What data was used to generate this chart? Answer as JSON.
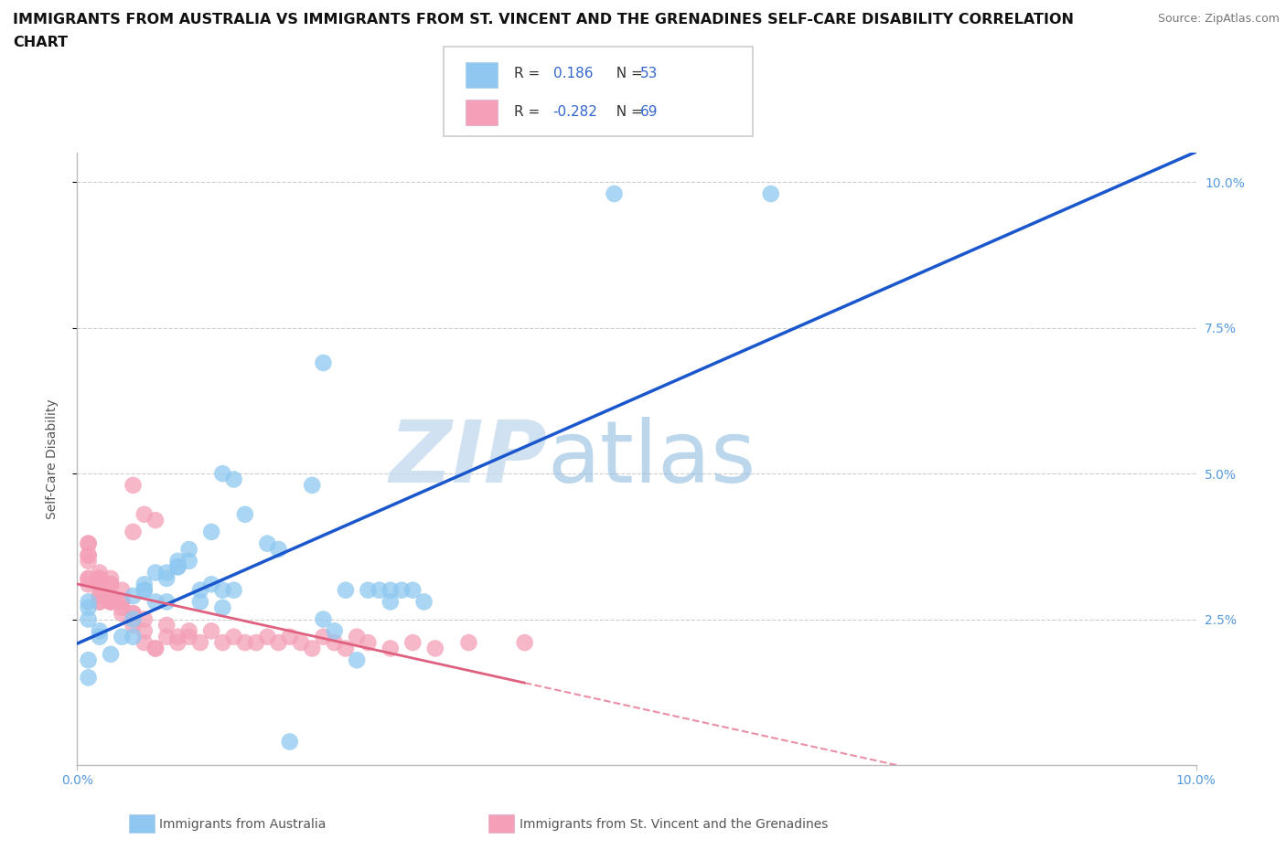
{
  "title_line1": "IMMIGRANTS FROM AUSTRALIA VS IMMIGRANTS FROM ST. VINCENT AND THE GRENADINES SELF-CARE DISABILITY CORRELATION",
  "title_line2": "CHART",
  "source": "Source: ZipAtlas.com",
  "ylabel": "Self-Care Disability",
  "x_min": 0.0,
  "x_max": 0.1,
  "y_min": 0.0,
  "y_max": 0.105,
  "R_australia": 0.186,
  "N_australia": 53,
  "R_stvincent": -0.282,
  "N_stvincent": 69,
  "color_australia": "#8EC8F0",
  "color_stvincent": "#F4A0B8",
  "trendline_australia_color": "#1A56CC",
  "trendline_stvincent_color": "#E06080",
  "background_color": "#ffffff",
  "grid_color": "#cccccc",
  "watermark_zip": "ZIP",
  "watermark_atlas": "atlas",
  "australia_x": [
    0.048,
    0.062,
    0.022,
    0.001,
    0.001,
    0.001,
    0.002,
    0.002,
    0.001,
    0.001,
    0.005,
    0.006,
    0.006,
    0.007,
    0.008,
    0.01,
    0.009,
    0.011,
    0.012,
    0.013,
    0.007,
    0.008,
    0.009,
    0.011,
    0.013,
    0.014,
    0.006,
    0.003,
    0.004,
    0.005,
    0.005,
    0.008,
    0.009,
    0.01,
    0.012,
    0.013,
    0.014,
    0.015,
    0.017,
    0.018,
    0.022,
    0.023,
    0.024,
    0.026,
    0.027,
    0.028,
    0.029,
    0.03,
    0.031,
    0.028,
    0.025,
    0.021,
    0.019
  ],
  "australia_y": [
    0.098,
    0.098,
    0.069,
    0.027,
    0.018,
    0.028,
    0.022,
    0.023,
    0.025,
    0.015,
    0.029,
    0.03,
    0.031,
    0.033,
    0.028,
    0.035,
    0.034,
    0.028,
    0.031,
    0.03,
    0.028,
    0.032,
    0.034,
    0.03,
    0.027,
    0.03,
    0.03,
    0.019,
    0.022,
    0.022,
    0.025,
    0.033,
    0.035,
    0.037,
    0.04,
    0.05,
    0.049,
    0.043,
    0.038,
    0.037,
    0.025,
    0.023,
    0.03,
    0.03,
    0.03,
    0.028,
    0.03,
    0.03,
    0.028,
    0.03,
    0.018,
    0.048,
    0.004
  ],
  "stvincent_x": [
    0.001,
    0.001,
    0.001,
    0.001,
    0.001,
    0.001,
    0.001,
    0.001,
    0.002,
    0.002,
    0.002,
    0.002,
    0.002,
    0.002,
    0.002,
    0.002,
    0.002,
    0.002,
    0.003,
    0.003,
    0.003,
    0.003,
    0.003,
    0.003,
    0.003,
    0.004,
    0.004,
    0.004,
    0.004,
    0.004,
    0.005,
    0.005,
    0.005,
    0.005,
    0.005,
    0.006,
    0.006,
    0.006,
    0.006,
    0.007,
    0.007,
    0.007,
    0.008,
    0.008,
    0.009,
    0.009,
    0.01,
    0.01,
    0.011,
    0.012,
    0.013,
    0.014,
    0.015,
    0.016,
    0.017,
    0.018,
    0.019,
    0.02,
    0.021,
    0.022,
    0.023,
    0.024,
    0.025,
    0.026,
    0.028,
    0.03,
    0.032,
    0.035,
    0.04
  ],
  "stvincent_y": [
    0.032,
    0.036,
    0.032,
    0.038,
    0.036,
    0.038,
    0.031,
    0.035,
    0.032,
    0.029,
    0.031,
    0.032,
    0.029,
    0.032,
    0.028,
    0.032,
    0.028,
    0.033,
    0.029,
    0.028,
    0.031,
    0.028,
    0.032,
    0.028,
    0.031,
    0.028,
    0.03,
    0.027,
    0.028,
    0.026,
    0.04,
    0.048,
    0.026,
    0.026,
    0.024,
    0.025,
    0.023,
    0.043,
    0.021,
    0.042,
    0.02,
    0.02,
    0.022,
    0.024,
    0.022,
    0.021,
    0.023,
    0.022,
    0.021,
    0.023,
    0.021,
    0.022,
    0.021,
    0.021,
    0.022,
    0.021,
    0.022,
    0.021,
    0.02,
    0.022,
    0.021,
    0.02,
    0.022,
    0.021,
    0.02,
    0.021,
    0.02,
    0.021,
    0.021
  ]
}
